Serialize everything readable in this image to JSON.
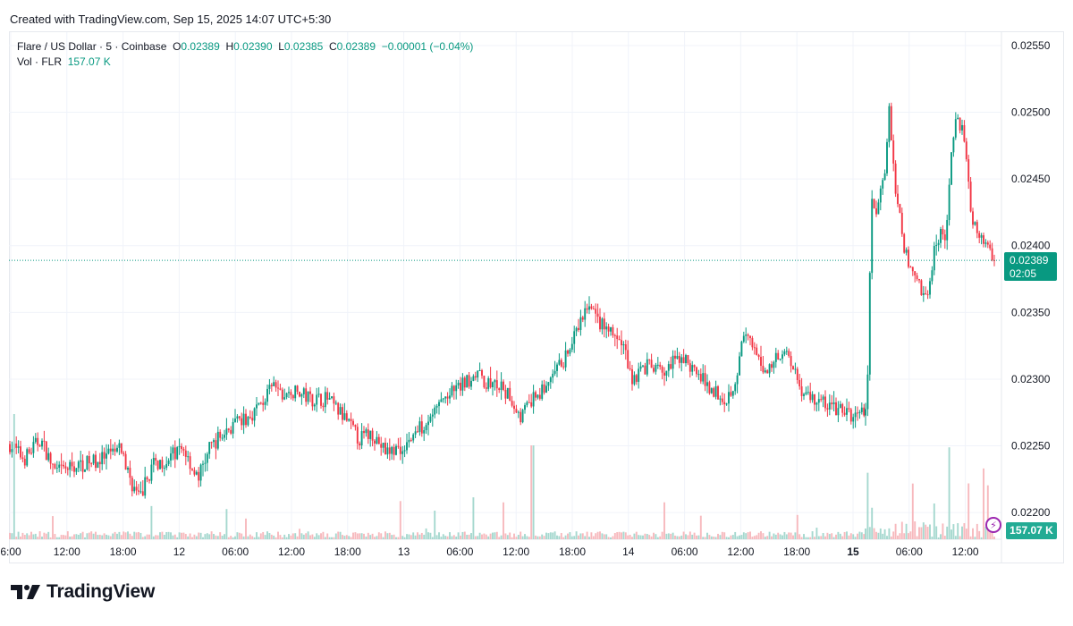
{
  "caption": "Created with TradingView.com, Sep 15, 2025 14:07 UTC+5:30",
  "legend": {
    "symbol": "Flare / US Dollar · 5 · Coinbase",
    "o_label": "O",
    "o_value": "0.02389",
    "h_label": "H",
    "h_value": "0.02390",
    "l_label": "L",
    "l_value": "0.02385",
    "c_label": "C",
    "c_value": "0.02389",
    "change": "−0.00001 (−0.04%)",
    "vol_label": "Vol · FLR",
    "vol_value": "157.07 K"
  },
  "last_price": {
    "price": "0.02389",
    "countdown": "02:05"
  },
  "volume_tag": "157.07 K",
  "brand": "TradingView",
  "colors": {
    "up": "#089981",
    "down": "#f23645",
    "vol_up": "#a5d8cf",
    "vol_down": "#f7b9bd",
    "text": "#131722"
  },
  "chart_data": {
    "type": "candlestick",
    "y_range": [
      0.0218,
      0.0256
    ],
    "y_ticks": [
      "0.02550",
      "0.02500",
      "0.02450",
      "0.02400",
      "0.02350",
      "0.02300",
      "0.02250",
      "0.02200"
    ],
    "x_ticks": [
      "6:00",
      "12:00",
      "18:00",
      "12",
      "06:00",
      "12:00",
      "18:00",
      "13",
      "06:00",
      "12:00",
      "18:00",
      "14",
      "06:00",
      "12:00",
      "18:00",
      "15",
      "06:00",
      "12:00"
    ],
    "x_ticks_bold": [
      "15"
    ],
    "price_path": [
      [
        0.0,
        0.02252
      ],
      [
        0.017,
        0.0224
      ],
      [
        0.035,
        0.02255
      ],
      [
        0.052,
        0.0223
      ],
      [
        0.075,
        0.02235
      ],
      [
        0.105,
        0.0224
      ],
      [
        0.125,
        0.02248
      ],
      [
        0.135,
        0.02225
      ],
      [
        0.145,
        0.0221
      ],
      [
        0.16,
        0.02235
      ],
      [
        0.175,
        0.0224
      ],
      [
        0.195,
        0.02248
      ],
      [
        0.21,
        0.02225
      ],
      [
        0.225,
        0.0225
      ],
      [
        0.245,
        0.02263
      ],
      [
        0.265,
        0.0227
      ],
      [
        0.285,
        0.02285
      ],
      [
        0.295,
        0.02295
      ],
      [
        0.305,
        0.02287
      ],
      [
        0.32,
        0.0229
      ],
      [
        0.34,
        0.02285
      ],
      [
        0.355,
        0.02285
      ],
      [
        0.375,
        0.0227
      ],
      [
        0.39,
        0.02255
      ],
      [
        0.405,
        0.0226
      ],
      [
        0.42,
        0.02245
      ],
      [
        0.44,
        0.0225
      ],
      [
        0.46,
        0.02265
      ],
      [
        0.485,
        0.02285
      ],
      [
        0.505,
        0.02295
      ],
      [
        0.52,
        0.02305
      ],
      [
        0.53,
        0.02298
      ],
      [
        0.545,
        0.02295
      ],
      [
        0.56,
        0.02285
      ],
      [
        0.57,
        0.02272
      ],
      [
        0.585,
        0.02285
      ],
      [
        0.6,
        0.02295
      ],
      [
        0.615,
        0.0231
      ],
      [
        0.63,
        0.0233
      ],
      [
        0.645,
        0.02355
      ],
      [
        0.655,
        0.02345
      ],
      [
        0.67,
        0.02335
      ],
      [
        0.685,
        0.02325
      ],
      [
        0.695,
        0.023
      ],
      [
        0.71,
        0.0231
      ],
      [
        0.73,
        0.02305
      ],
      [
        0.75,
        0.02318
      ],
      [
        0.765,
        0.02305
      ],
      [
        0.78,
        0.02295
      ],
      [
        0.8,
        0.02285
      ],
      [
        0.81,
        0.023
      ],
      [
        0.82,
        0.02335
      ],
      [
        0.83,
        0.0232
      ],
      [
        0.845,
        0.02305
      ],
      [
        0.855,
        0.02318
      ],
      [
        0.865,
        0.02322
      ],
      [
        0.875,
        0.0231
      ],
      [
        0.885,
        0.0229
      ],
      [
        0.9,
        0.02285
      ],
      [
        0.915,
        0.0228
      ],
      [
        0.93,
        0.02275
      ],
      [
        0.945,
        0.02272
      ],
      [
        0.955,
        0.02275
      ],
      [
        0.958,
        0.0232
      ],
      [
        0.962,
        0.02395
      ],
      [
        0.966,
        0.0244
      ],
      [
        0.97,
        0.0242
      ],
      [
        0.975,
        0.02445
      ],
      [
        0.98,
        0.02455
      ],
      [
        0.985,
        0.02505
      ],
      [
        0.988,
        0.0246
      ],
      [
        0.992,
        0.0243
      ],
      [
        0.996,
        0.0241
      ]
    ],
    "price_path_day15": [
      [
        0.0,
        0.02272
      ],
      [
        0.01,
        0.0232
      ],
      [
        0.02,
        0.0244
      ],
      [
        0.035,
        0.0242
      ],
      [
        0.05,
        0.02445
      ],
      [
        0.07,
        0.0246
      ],
      [
        0.085,
        0.02505
      ],
      [
        0.1,
        0.0245
      ],
      [
        0.12,
        0.0242
      ],
      [
        0.14,
        0.02395
      ],
      [
        0.16,
        0.0238
      ],
      [
        0.18,
        0.0238
      ],
      [
        0.2,
        0.02365
      ],
      [
        0.22,
        0.0236
      ],
      [
        0.24,
        0.02395
      ],
      [
        0.26,
        0.0241
      ],
      [
        0.28,
        0.02405
      ],
      [
        0.3,
        0.0246
      ],
      [
        0.32,
        0.02495
      ],
      [
        0.34,
        0.0249
      ],
      [
        0.36,
        0.0245
      ],
      [
        0.38,
        0.02415
      ],
      [
        0.4,
        0.0241
      ],
      [
        0.42,
        0.02405
      ],
      [
        0.44,
        0.02395
      ],
      [
        0.46,
        0.02389
      ]
    ]
  }
}
